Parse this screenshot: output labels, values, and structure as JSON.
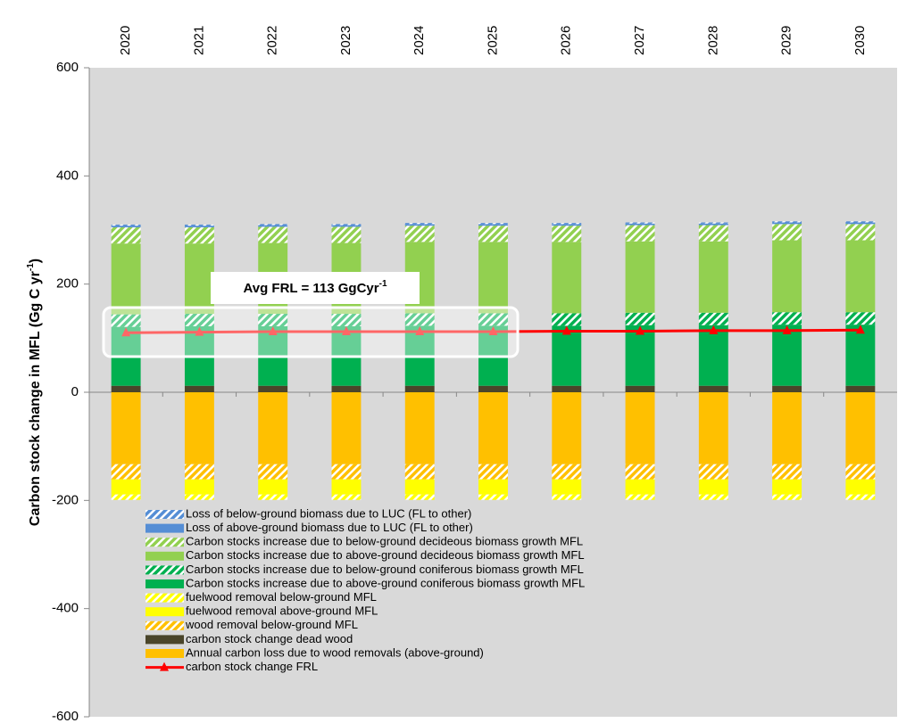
{
  "chart_data": {
    "type": "bar",
    "categories": [
      "2020",
      "2021",
      "2022",
      "2023",
      "2024",
      "2025",
      "2026",
      "2027",
      "2028",
      "2029",
      "2030"
    ],
    "ylabel": [
      "Carbon stock change in MFL (Gg C yr",
      "-1",
      ")"
    ],
    "annotation": [
      "Avg FRL = 113 GgCyr",
      "-1"
    ],
    "ylim": [
      -600,
      600
    ],
    "yticks": [
      -600,
      -400,
      -200,
      0,
      200,
      400,
      600
    ],
    "series": [
      {
        "name": "Loss of below-ground biomass due to LUC (FL to other)",
        "color": "#558ed5",
        "pattern": "hatch",
        "values": [
          2,
          2,
          2,
          2,
          2,
          2,
          2,
          2,
          2,
          2,
          2
        ]
      },
      {
        "name": "Loss of above-ground biomass due to LUC (FL to other)",
        "color": "#558ed5",
        "values": [
          3,
          3,
          3,
          3,
          3,
          3,
          3,
          3,
          3,
          3,
          3
        ]
      },
      {
        "name": "Carbon stocks increase due to below-ground decideous biomass growth MFL",
        "color": "#92d050",
        "pattern": "hatch",
        "values": [
          30,
          30,
          30,
          30,
          30,
          30,
          30,
          30,
          30,
          30,
          30
        ]
      },
      {
        "name": "Carbon stocks increase due to above-ground decideous biomass growth MFL",
        "color": "#92d050",
        "values": [
          131,
          130,
          131,
          131,
          132,
          132,
          132,
          132,
          132,
          133,
          133
        ]
      },
      {
        "name": "Carbon stocks increase due to below-ground coniferous biomass growth MFL",
        "color": "#00b050",
        "pattern": "hatch",
        "values": [
          23,
          23,
          23,
          23,
          23,
          23,
          23,
          23,
          23,
          23,
          23
        ]
      },
      {
        "name": "Carbon stocks increase due to above-ground coniferous biomass growth MFL",
        "color": "#00b050",
        "values": [
          109,
          110,
          110,
          110,
          111,
          111,
          111,
          112,
          112,
          113,
          113
        ]
      },
      {
        "name": "fuelwood removal below-ground MFL",
        "color": "#ffff00",
        "pattern": "hatch",
        "values": [
          -10,
          -10,
          -10,
          -10,
          -10,
          -10,
          -10,
          -10,
          -10,
          -10,
          -10
        ]
      },
      {
        "name": "fuelwood removal above-ground MFL",
        "color": "#ffff00",
        "values": [
          -28,
          -28,
          -28,
          -28,
          -28,
          -28,
          -28,
          -28,
          -28,
          -28,
          -28
        ]
      },
      {
        "name": "wood removal below-ground MFL",
        "color": "#ffc000",
        "pattern": "hatch",
        "values": [
          -28,
          -28,
          -28,
          -28,
          -28,
          -28,
          -28,
          -28,
          -28,
          -28,
          -28
        ]
      },
      {
        "name": "carbon stock change dead wood",
        "color": "#4a452a",
        "values": [
          12,
          12,
          12,
          12,
          12,
          12,
          12,
          12,
          12,
          12,
          12
        ]
      },
      {
        "name": "Annual carbon loss due to wood removals (above-ground)",
        "color": "#ffc000",
        "values": [
          -133,
          -133,
          -133,
          -133,
          -133,
          -133,
          -133,
          -133,
          -133,
          -133,
          -133
        ]
      },
      {
        "name": "carbon stock change FRL",
        "color": "#ff0000",
        "type": "line",
        "values": [
          110,
          111,
          112,
          112,
          112,
          112,
          113,
          113,
          114,
          114,
          115
        ]
      }
    ]
  }
}
